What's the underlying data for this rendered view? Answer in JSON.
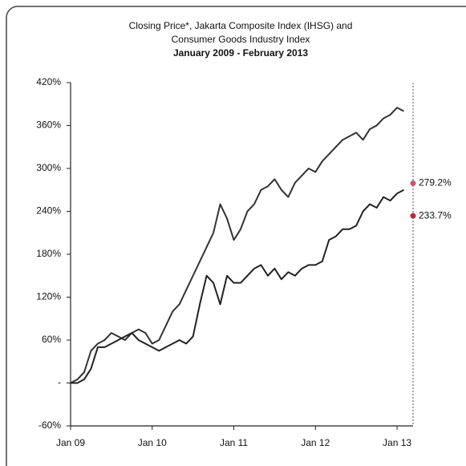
{
  "chart_data": {
    "type": "line",
    "title": [
      "Closing Price*, Jakarta Composite Index (IHSG) and",
      "Consumer Goods Industry Index",
      "January 2009 - February 2013"
    ],
    "categories": [
      "Jan 09",
      null,
      null,
      null,
      null,
      null,
      null,
      null,
      null,
      null,
      null,
      null,
      "Jan 10",
      null,
      null,
      null,
      null,
      null,
      null,
      null,
      null,
      null,
      null,
      null,
      "Jan 11",
      null,
      null,
      null,
      null,
      null,
      null,
      null,
      null,
      null,
      null,
      null,
      "Jan 12",
      null,
      null,
      null,
      null,
      null,
      null,
      null,
      null,
      null,
      null,
      null,
      "Jan 13",
      null
    ],
    "series": [
      {
        "color": "#333333",
        "values": [
          0,
          5,
          15,
          45,
          55,
          60,
          70,
          65,
          60,
          70,
          75,
          70,
          55,
          60,
          80,
          100,
          110,
          130,
          150,
          170,
          190,
          210,
          250,
          230,
          200,
          215,
          240,
          250,
          270,
          275,
          285,
          270,
          260,
          280,
          290,
          300,
          295,
          310,
          320,
          330,
          340,
          345,
          350,
          340,
          355,
          360,
          370,
          375,
          385,
          380
        ]
      },
      {
        "color": "#222222",
        "values": [
          0,
          0,
          5,
          20,
          50,
          50,
          55,
          60,
          65,
          70,
          60,
          55,
          50,
          45,
          50,
          55,
          60,
          55,
          65,
          110,
          150,
          140,
          110,
          150,
          140,
          140,
          150,
          160,
          165,
          150,
          160,
          145,
          155,
          150,
          160,
          165,
          165,
          170,
          200,
          205,
          215,
          215,
          220,
          240,
          250,
          245,
          260,
          255,
          265,
          270
        ]
      }
    ],
    "annotations": [
      {
        "text": "279.2%",
        "value": 279.2,
        "color": "#c9566e"
      },
      {
        "text": "233.7%",
        "value": 233.7,
        "color": "#b03040"
      }
    ],
    "ylim": [
      -60,
      420
    ],
    "yticks": [
      {
        "value": -60,
        "label": "-60%"
      },
      {
        "value": 0,
        "label": "-"
      },
      {
        "value": 60,
        "label": "60%"
      },
      {
        "value": 120,
        "label": "120%"
      },
      {
        "value": 180,
        "label": "180%"
      },
      {
        "value": 240,
        "label": "240%"
      },
      {
        "value": 300,
        "label": "300%"
      },
      {
        "value": 360,
        "label": "360%"
      },
      {
        "value": 420,
        "label": "420%"
      }
    ]
  }
}
